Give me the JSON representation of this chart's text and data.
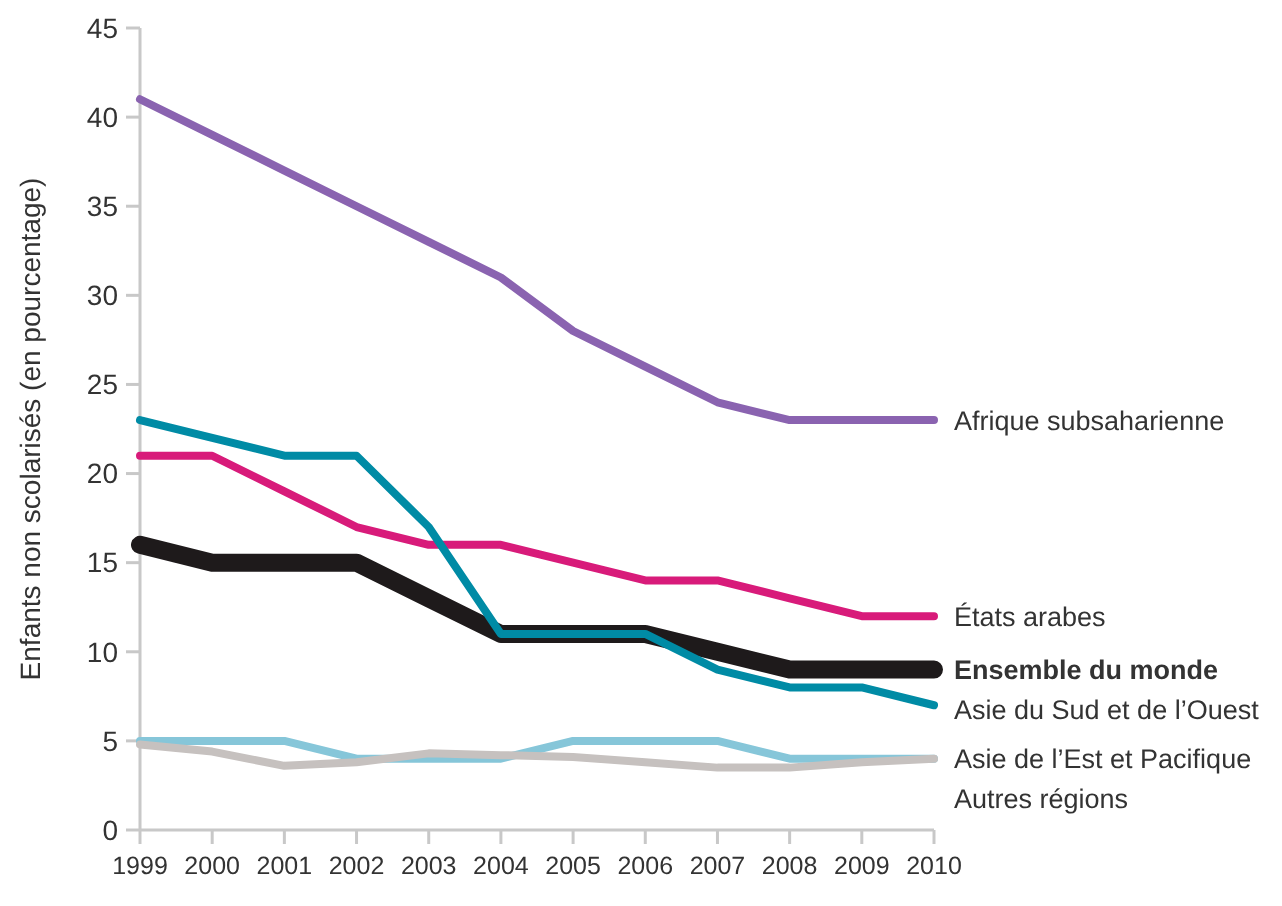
{
  "chart_data": {
    "type": "line",
    "ylabel": "Enfants non scolarisés (en pourcentage)",
    "x": [
      1999,
      2000,
      2001,
      2002,
      2003,
      2004,
      2005,
      2006,
      2007,
      2008,
      2009,
      2010
    ],
    "xlim": [
      1999,
      2010
    ],
    "xticks": [
      1999,
      2000,
      2001,
      2002,
      2003,
      2004,
      2005,
      2006,
      2007,
      2008,
      2009,
      2010
    ],
    "ylim": [
      0,
      45
    ],
    "yticks": [
      0,
      5,
      10,
      15,
      20,
      25,
      30,
      35,
      40,
      45
    ],
    "grid": false,
    "marker": "none",
    "line_style": "solid",
    "series": [
      {
        "name": "Afrique subsaharienne",
        "color": "#8a63b0",
        "values": [
          41,
          39,
          37,
          35,
          33,
          31,
          28,
          26,
          24,
          23,
          23,
          23
        ]
      },
      {
        "name": "États arabes",
        "color": "#d81b7a",
        "values": [
          21,
          21,
          19,
          17,
          16,
          16,
          15,
          14,
          14,
          13,
          12,
          12
        ]
      },
      {
        "name": "Ensemble du monde",
        "color": "#1e1a1b",
        "values": [
          16,
          15,
          15,
          15,
          13,
          11,
          11,
          11,
          10,
          9,
          9,
          9
        ]
      },
      {
        "name": "Asie du Sud et de l’Ouest",
        "color": "#008ba5",
        "values": [
          23,
          22,
          21,
          21,
          17,
          11,
          11,
          11,
          9,
          8,
          8,
          7
        ]
      },
      {
        "name": "Asie de l’Est et Pacifique",
        "color": "#86c6d9",
        "values": [
          5,
          5,
          5,
          4,
          4,
          4,
          5,
          5,
          5,
          4,
          4,
          4
        ]
      },
      {
        "name": "Autres régions",
        "color": "#c6c1bf",
        "values": [
          4.8,
          4.4,
          3.6,
          3.8,
          4.3,
          4.2,
          4.1,
          3.8,
          3.5,
          3.5,
          3.8,
          4
        ]
      }
    ]
  }
}
